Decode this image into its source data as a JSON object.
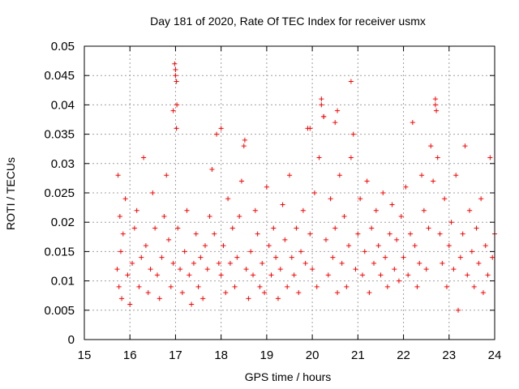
{
  "chart_data": {
    "type": "scatter",
    "title": "Day 181 of 2020, Rate Of TEC Index for receiver usmx",
    "xlabel": "GPS time / hours",
    "ylabel": "ROTI / TECUs",
    "xlim": [
      15,
      24
    ],
    "ylim": [
      0,
      0.05
    ],
    "x_ticks": [
      15,
      16,
      17,
      18,
      19,
      20,
      21,
      22,
      23,
      24
    ],
    "y_ticks": [
      0,
      0.005,
      0.01,
      0.015,
      0.02,
      0.025,
      0.03,
      0.035,
      0.04,
      0.045,
      0.05
    ],
    "x_tick_labels": [
      "15",
      "16",
      "17",
      "18",
      "19",
      "20",
      "21",
      "22",
      "23",
      "24"
    ],
    "y_tick_labels": [
      "0",
      "0.005",
      "0.01",
      "0.015",
      "0.02",
      "0.025",
      "0.03",
      "0.035",
      "0.04",
      "0.045",
      "0.05"
    ],
    "grid": true,
    "marker": "+",
    "color": "#ff0000",
    "series": [
      {
        "name": "ROTI",
        "x": [
          15.72,
          15.74,
          15.76,
          15.78,
          15.8,
          15.82,
          15.85,
          15.9,
          15.95,
          16.0,
          16.05,
          16.1,
          16.15,
          16.2,
          16.25,
          16.3,
          16.35,
          16.4,
          16.45,
          16.5,
          16.55,
          16.6,
          16.65,
          16.7,
          16.75,
          16.8,
          16.85,
          16.9,
          16.95,
          17.0,
          17.02,
          17.05,
          17.1,
          17.15,
          17.2,
          17.25,
          17.3,
          17.35,
          17.4,
          17.45,
          17.5,
          17.55,
          17.6,
          17.65,
          17.7,
          17.75,
          17.8,
          17.85,
          17.9,
          17.95,
          18.0,
          18.05,
          18.1,
          18.15,
          18.2,
          18.25,
          18.3,
          18.35,
          18.4,
          18.45,
          18.5,
          18.55,
          18.6,
          18.65,
          18.7,
          18.75,
          18.8,
          18.85,
          18.9,
          18.95,
          19.0,
          19.05,
          19.1,
          19.15,
          19.2,
          19.25,
          19.3,
          19.35,
          19.4,
          19.45,
          19.5,
          19.55,
          19.6,
          19.65,
          19.7,
          19.75,
          19.8,
          19.85,
          19.9,
          19.95,
          20.0,
          20.05,
          20.1,
          20.15,
          20.2,
          20.25,
          20.3,
          20.35,
          20.4,
          20.45,
          20.5,
          20.55,
          20.6,
          20.65,
          20.7,
          20.75,
          20.8,
          20.85,
          20.9,
          20.95,
          21.0,
          21.05,
          21.1,
          21.15,
          21.2,
          21.25,
          21.3,
          21.35,
          21.4,
          21.45,
          21.5,
          21.55,
          21.6,
          21.65,
          21.7,
          21.75,
          21.8,
          21.85,
          21.9,
          21.95,
          22.0,
          22.05,
          22.1,
          22.15,
          22.2,
          22.25,
          22.3,
          22.35,
          22.4,
          22.45,
          22.5,
          22.55,
          22.6,
          22.65,
          22.7,
          22.75,
          22.8,
          22.85,
          22.9,
          22.95,
          23.0,
          23.05,
          23.1,
          23.15,
          23.2,
          23.25,
          23.3,
          23.35,
          23.4,
          23.45,
          23.5,
          23.55,
          23.6,
          23.65,
          23.7,
          23.75,
          23.8,
          23.85,
          23.9,
          23.95,
          24.0,
          16.98,
          17.0,
          17.03,
          16.95,
          17.02,
          20.85,
          20.2,
          20.25,
          22.7,
          22.72,
          20.5,
          20.55,
          19.95,
          18.0,
          18.52
        ],
        "y": [
          0.012,
          0.028,
          0.009,
          0.021,
          0.015,
          0.007,
          0.018,
          0.024,
          0.011,
          0.006,
          0.013,
          0.019,
          0.022,
          0.009,
          0.014,
          0.031,
          0.016,
          0.008,
          0.012,
          0.025,
          0.019,
          0.011,
          0.007,
          0.014,
          0.021,
          0.028,
          0.017,
          0.009,
          0.013,
          0.046,
          0.044,
          0.019,
          0.012,
          0.008,
          0.015,
          0.022,
          0.011,
          0.006,
          0.013,
          0.018,
          0.009,
          0.014,
          0.007,
          0.016,
          0.012,
          0.021,
          0.029,
          0.018,
          0.035,
          0.013,
          0.011,
          0.016,
          0.008,
          0.024,
          0.013,
          0.019,
          0.009,
          0.014,
          0.021,
          0.027,
          0.033,
          0.012,
          0.007,
          0.015,
          0.011,
          0.022,
          0.018,
          0.009,
          0.013,
          0.008,
          0.026,
          0.016,
          0.011,
          0.019,
          0.014,
          0.007,
          0.012,
          0.023,
          0.017,
          0.009,
          0.028,
          0.014,
          0.011,
          0.019,
          0.008,
          0.015,
          0.022,
          0.013,
          0.036,
          0.018,
          0.012,
          0.025,
          0.009,
          0.031,
          0.041,
          0.038,
          0.017,
          0.011,
          0.024,
          0.014,
          0.019,
          0.008,
          0.028,
          0.013,
          0.021,
          0.009,
          0.016,
          0.031,
          0.035,
          0.012,
          0.018,
          0.024,
          0.011,
          0.015,
          0.027,
          0.008,
          0.019,
          0.013,
          0.022,
          0.016,
          0.011,
          0.025,
          0.014,
          0.009,
          0.018,
          0.023,
          0.012,
          0.017,
          0.01,
          0.021,
          0.014,
          0.026,
          0.011,
          0.018,
          0.037,
          0.016,
          0.009,
          0.013,
          0.028,
          0.022,
          0.012,
          0.019,
          0.033,
          0.027,
          0.04,
          0.031,
          0.018,
          0.013,
          0.024,
          0.009,
          0.016,
          0.02,
          0.012,
          0.028,
          0.005,
          0.014,
          0.018,
          0.033,
          0.011,
          0.022,
          0.015,
          0.009,
          0.019,
          0.013,
          0.024,
          0.008,
          0.016,
          0.011,
          0.031,
          0.014,
          0.018,
          0.047,
          0.045,
          0.04,
          0.039,
          0.036,
          0.044,
          0.04,
          0.038,
          0.041,
          0.039,
          0.037,
          0.039,
          0.036,
          0.036,
          0.034
        ]
      }
    ]
  }
}
